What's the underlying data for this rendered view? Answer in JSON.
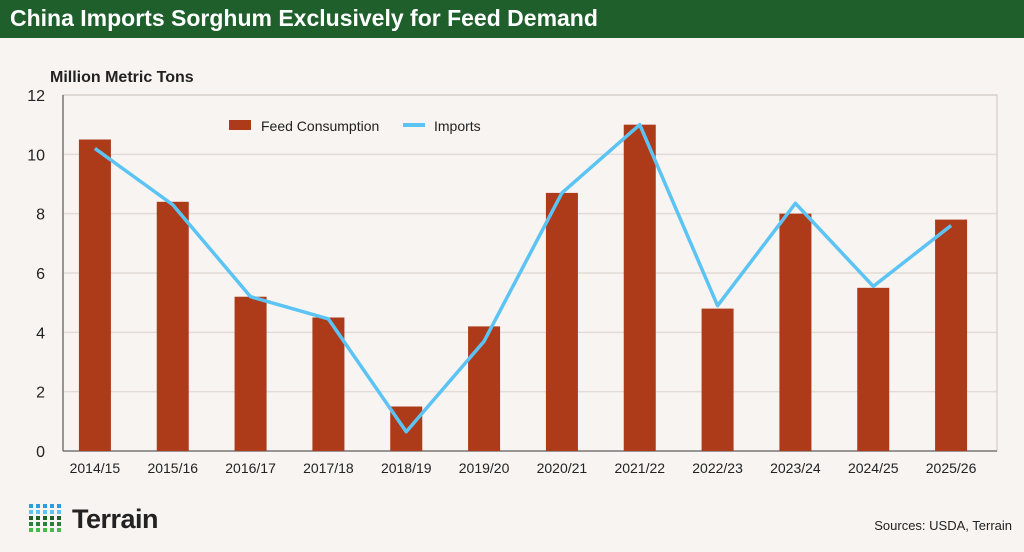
{
  "header": {
    "title": "China Imports Sorghum Exclusively for Feed Demand"
  },
  "footer": {
    "brand": "Terrain",
    "sources": "Sources: USDA, Terrain"
  },
  "colors": {
    "banner": "#1f5f2c",
    "bars": "#ad3a19",
    "line": "#5bc4f5",
    "background": "#f8f4f1"
  },
  "chart_data": {
    "type": "bar",
    "title": "China Imports Sorghum Exclusively for Feed Demand",
    "ylabel": "Million Metric Tons",
    "xlabel": "",
    "ylim": [
      0,
      12
    ],
    "yticks": [
      0,
      2,
      4,
      6,
      8,
      10,
      12
    ],
    "grid": true,
    "legend": "top-center",
    "categories": [
      "2014/15",
      "2015/16",
      "2016/17",
      "2017/18",
      "2018/19",
      "2019/20",
      "2020/21",
      "2021/22",
      "2022/23",
      "2023/24",
      "2024/25",
      "2025/26"
    ],
    "series": [
      {
        "name": "Feed Consumption",
        "type": "bar",
        "values": [
          10.5,
          8.4,
          5.2,
          4.5,
          1.5,
          4.2,
          8.7,
          11.0,
          4.8,
          8.0,
          5.5,
          7.8
        ]
      },
      {
        "name": "Imports",
        "type": "line",
        "values": [
          10.2,
          8.3,
          5.2,
          4.45,
          0.65,
          3.7,
          8.7,
          11.0,
          4.9,
          8.35,
          5.55,
          7.6
        ]
      }
    ]
  }
}
